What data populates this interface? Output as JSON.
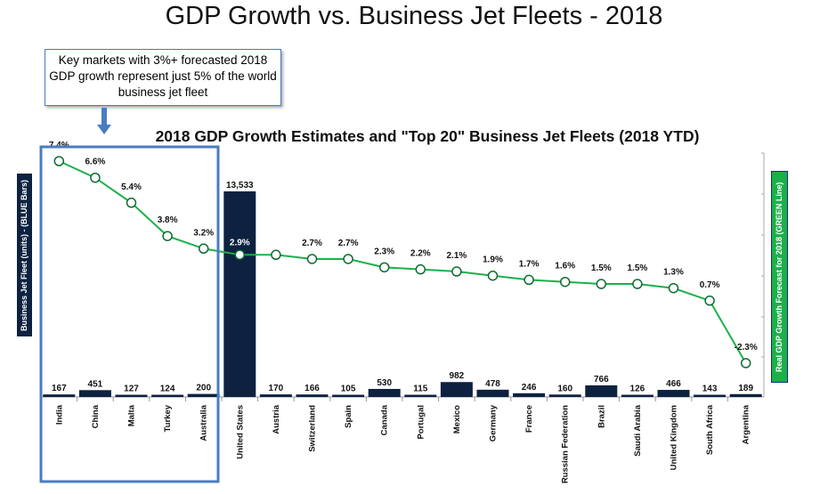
{
  "chart_data": {
    "type": "bar+line",
    "title": "GDP Growth vs. Business Jet Fleets - 2018",
    "subtitle": "2018 GDP Growth Estimates and \"Top 20\" Business Jet Fleets (2018 YTD)",
    "annotation": "Key markets with 3%+ forecasted 2018 GDP growth represent just 5% of the world business jet fleet",
    "ylabel_left": "Business Jet Fleet (units) - (BLUE Bars)",
    "ylabel_right": "Real GDP Growth Forecast for 2018 (GREEN Line)",
    "categories": [
      "India",
      "China",
      "Malta",
      "Turkey",
      "Australia",
      "United States",
      "Austria",
      "Switzerland",
      "Spain",
      "Canada",
      "Portugal",
      "Mexico",
      "Germany",
      "France",
      "Russian Federation",
      "Brazil",
      "Saudi Arabia",
      "United Kingdom",
      "South Africa",
      "Argentina"
    ],
    "series": [
      {
        "name": "BLUE Bars",
        "type": "bar",
        "values": [
          167,
          451,
          127,
          124,
          200,
          13533,
          170,
          166,
          105,
          530,
          115,
          982,
          478,
          246,
          160,
          766,
          126,
          466,
          143,
          189
        ],
        "labels": [
          "167",
          "451",
          "127",
          "124",
          "200",
          "13,533",
          "170",
          "166",
          "105",
          "530",
          "115",
          "982",
          "478",
          "246",
          "160",
          "766",
          "126",
          "466",
          "143",
          "189"
        ]
      },
      {
        "name": "GREEN Line",
        "type": "line",
        "values": [
          7.4,
          6.6,
          5.4,
          3.8,
          3.2,
          2.9,
          2.9,
          2.7,
          2.7,
          2.3,
          2.2,
          2.1,
          1.9,
          1.7,
          1.6,
          1.5,
          1.5,
          1.3,
          0.7,
          -2.3
        ],
        "labels": [
          "7.4%",
          "6.6%",
          "5.4%",
          "3.8%",
          "3.2%",
          "2.9%",
          "",
          "2.7%",
          "2.7%",
          "2.3%",
          "2.2%",
          "2.1%",
          "1.9%",
          "1.7%",
          "1.6%",
          "1.5%",
          "1.5%",
          "1.3%",
          "0.7%",
          "-2.3%"
        ]
      }
    ],
    "colors": {
      "bar": "#0d2240",
      "line": "#1cb04a",
      "marker_edge": "#0e6b34",
      "highlight_box": "#4a7cc0"
    }
  }
}
